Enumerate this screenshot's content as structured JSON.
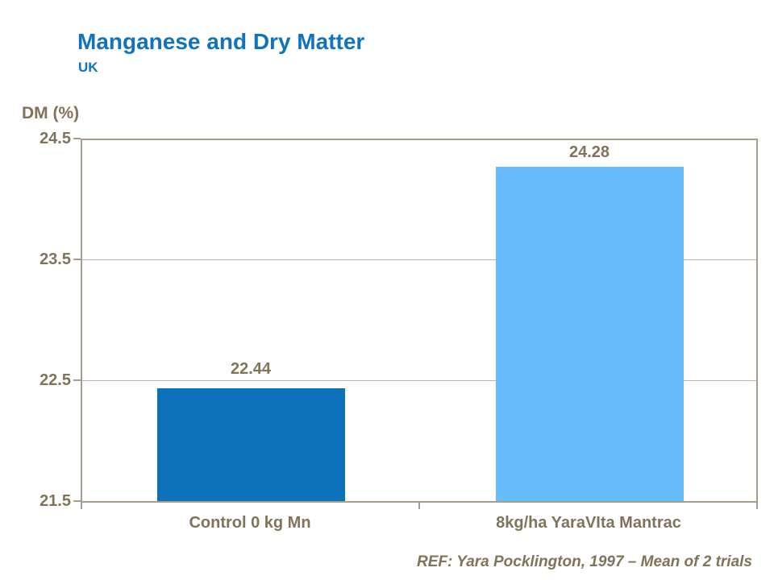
{
  "header": {
    "title": "Manganese and Dry Matter",
    "subtitle": "UK"
  },
  "footer": {
    "ref": "REF: Yara Pocklington, 1997 – Mean of 2 trials"
  },
  "colors": {
    "title_blue": "#1173BB",
    "bar_dark_blue": "#0D72B9",
    "bar_light_blue": "#66BBFA",
    "axis_line": "#A69D8F",
    "gridline": "#BDB3A2",
    "axis_text_brown": "#81735A",
    "background": "#FFFFFF"
  },
  "chart_data": {
    "type": "bar",
    "title": "Manganese and Dry Matter",
    "subtitle": "UK",
    "ylabel": "DM (%)",
    "xlabel": "",
    "ylim": [
      21.5,
      24.5
    ],
    "y_ticks": [
      24.5,
      23.5,
      22.5,
      21.5
    ],
    "y_tick_labels": [
      "24.5",
      "23.5",
      "22.5",
      "21.5"
    ],
    "grid": "horizontal",
    "legend": "none",
    "categories": [
      "Control 0 kg Mn",
      "8kg/ha YaraVIta Mantrac"
    ],
    "values": [
      22.44,
      24.28
    ],
    "value_labels": [
      "22.44",
      "24.28"
    ],
    "bar_colors": [
      "#0D72B9",
      "#66BBFA"
    ]
  }
}
